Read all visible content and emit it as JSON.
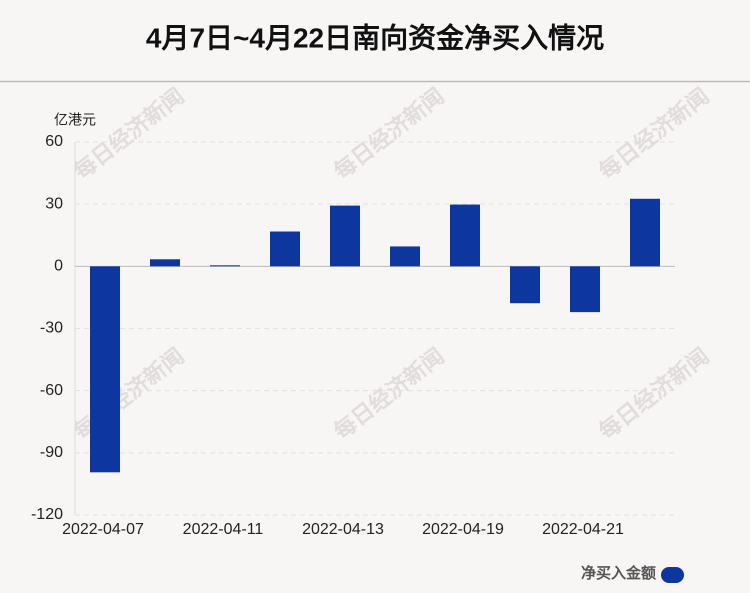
{
  "chart_data": {
    "type": "bar",
    "title": "4月7日~4月22日南向资金净买入情况",
    "y_unit": "亿港元",
    "watermark": "每日经济新闻",
    "categories": [
      "2022-04-07",
      null,
      "2022-04-11",
      null,
      "2022-04-13",
      null,
      "2022-04-19",
      null,
      "2022-04-21",
      null
    ],
    "series": [
      {
        "name": "净买入金额",
        "color": "#0d369f",
        "values": [
          -99.4,
          3.4,
          0.5,
          16.8,
          29.3,
          9.6,
          29.8,
          -17.8,
          -22.1,
          32.6
        ]
      }
    ],
    "ylim": [
      -120,
      60
    ],
    "yticks": [
      -120,
      -90,
      -60,
      -30,
      0,
      30,
      60
    ],
    "grid": true
  }
}
